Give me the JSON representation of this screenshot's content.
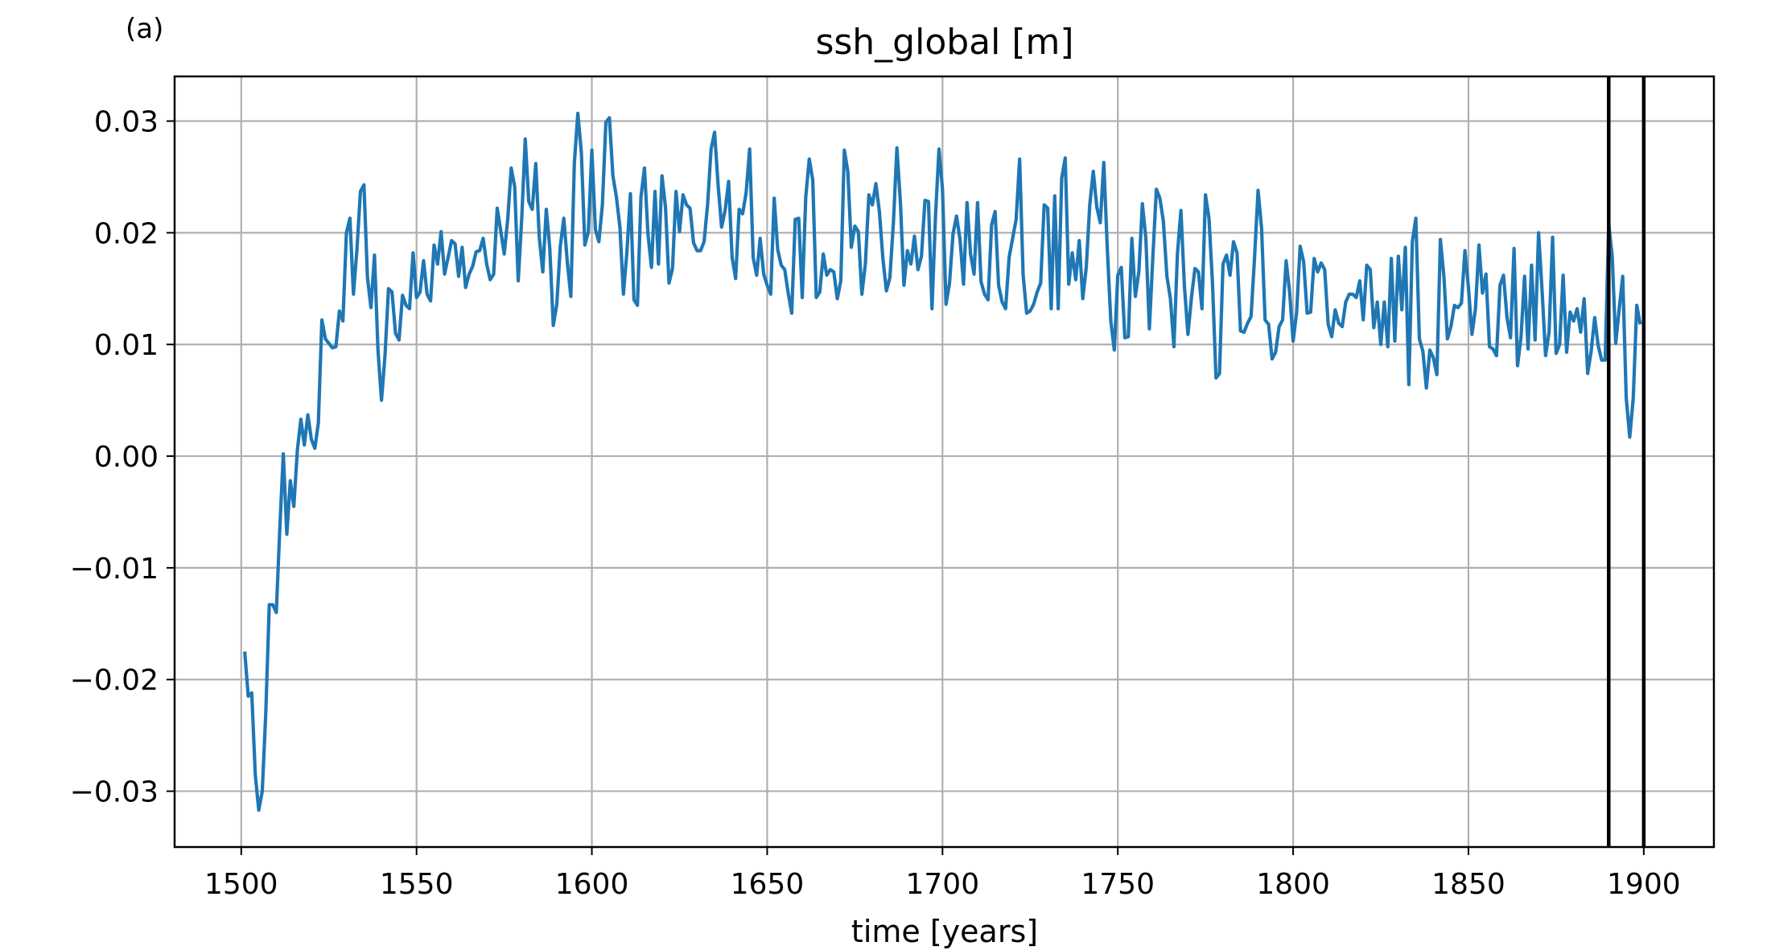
{
  "panel_label": "(a)",
  "chart_data": {
    "type": "line",
    "title": "ssh_global [m]",
    "xlabel": "time [years]",
    "ylabel": "",
    "xlim": [
      1481,
      1920
    ],
    "ylim": [
      -0.035,
      0.034
    ],
    "xticks": [
      1500,
      1550,
      1600,
      1650,
      1700,
      1750,
      1800,
      1850,
      1900
    ],
    "xtick_labels": [
      "1500",
      "1550",
      "1600",
      "1650",
      "1700",
      "1750",
      "1800",
      "1850",
      "1900"
    ],
    "yticks": [
      -0.03,
      -0.02,
      -0.01,
      0.0,
      0.01,
      0.02,
      0.03
    ],
    "ytick_labels": [
      "−0.03",
      "−0.02",
      "−0.01",
      "0.00",
      "0.01",
      "0.02",
      "0.03"
    ],
    "grid": true,
    "legend": false,
    "line_color": "#1f77b4",
    "vertical_lines": [
      1890,
      1900
    ],
    "vertical_line_color": "#000000",
    "x_start": 1501,
    "x_step": 1,
    "y": [
      -0.0175,
      -0.0215,
      -0.0212,
      -0.0285,
      -0.0317,
      -0.03,
      -0.023,
      -0.0133,
      -0.0133,
      -0.014,
      -0.0065,
      0.0002,
      -0.007,
      -0.0022,
      -0.0045,
      0.0005,
      0.0033,
      0.001,
      0.0037,
      0.0015,
      0.0007,
      0.003,
      0.0122,
      0.0105,
      0.0101,
      0.0097,
      0.0098,
      0.013,
      0.0121,
      0.02,
      0.0213,
      0.0145,
      0.0185,
      0.0237,
      0.0243,
      0.016,
      0.0133,
      0.018,
      0.0095,
      0.005,
      0.009,
      0.015,
      0.0147,
      0.011,
      0.0104,
      0.0144,
      0.0135,
      0.0132,
      0.0182,
      0.0142,
      0.0147,
      0.0175,
      0.0145,
      0.0139,
      0.0189,
      0.0172,
      0.0201,
      0.0163,
      0.0178,
      0.0193,
      0.019,
      0.0161,
      0.0187,
      0.0151,
      0.0163,
      0.017,
      0.0183,
      0.0184,
      0.0195,
      0.0172,
      0.0158,
      0.0163,
      0.0222,
      0.0202,
      0.0181,
      0.0212,
      0.0258,
      0.0241,
      0.0157,
      0.0213,
      0.0284,
      0.0228,
      0.0221,
      0.0262,
      0.0196,
      0.0165,
      0.0221,
      0.0186,
      0.0117,
      0.0136,
      0.0188,
      0.0213,
      0.0174,
      0.0143,
      0.0262,
      0.0307,
      0.0272,
      0.0189,
      0.0201,
      0.0274,
      0.0203,
      0.0192,
      0.0225,
      0.0299,
      0.0303,
      0.0251,
      0.0232,
      0.0205,
      0.0145,
      0.0183,
      0.0235,
      0.014,
      0.0135,
      0.0232,
      0.0258,
      0.0199,
      0.0169,
      0.0237,
      0.0172,
      0.0251,
      0.0223,
      0.0155,
      0.0168,
      0.0237,
      0.0201,
      0.0234,
      0.0225,
      0.0222,
      0.0191,
      0.0184,
      0.0184,
      0.0192,
      0.0225,
      0.0275,
      0.029,
      0.0243,
      0.0205,
      0.022,
      0.0246,
      0.0178,
      0.0159,
      0.0221,
      0.0217,
      0.0236,
      0.0275,
      0.0178,
      0.0162,
      0.0195,
      0.0163,
      0.0153,
      0.0145,
      0.0231,
      0.0185,
      0.0171,
      0.0167,
      0.0146,
      0.0128,
      0.0212,
      0.0213,
      0.0142,
      0.0232,
      0.0266,
      0.0247,
      0.0142,
      0.0147,
      0.0181,
      0.0162,
      0.0167,
      0.0165,
      0.0141,
      0.0157,
      0.0274,
      0.0255,
      0.0187,
      0.0206,
      0.0201,
      0.0145,
      0.0172,
      0.0234,
      0.0225,
      0.0244,
      0.0219,
      0.0177,
      0.0148,
      0.016,
      0.0209,
      0.0276,
      0.0227,
      0.0153,
      0.0184,
      0.0172,
      0.0197,
      0.0167,
      0.0179,
      0.0229,
      0.0228,
      0.0132,
      0.0215,
      0.0275,
      0.0239,
      0.0136,
      0.0155,
      0.0199,
      0.0215,
      0.0194,
      0.0154,
      0.0227,
      0.0181,
      0.0163,
      0.0227,
      0.0156,
      0.0145,
      0.014,
      0.0207,
      0.0219,
      0.0153,
      0.0138,
      0.0132,
      0.0178,
      0.0195,
      0.0212,
      0.0266,
      0.0162,
      0.0128,
      0.013,
      0.0136,
      0.0147,
      0.0155,
      0.0225,
      0.0222,
      0.0132,
      0.0233,
      0.0132,
      0.0249,
      0.0267,
      0.0154,
      0.0182,
      0.0158,
      0.0193,
      0.0141,
      0.0169,
      0.0225,
      0.0255,
      0.0223,
      0.0209,
      0.0263,
      0.0186,
      0.0121,
      0.0095,
      0.0162,
      0.0169,
      0.0106,
      0.0107,
      0.0195,
      0.0143,
      0.0165,
      0.0226,
      0.0195,
      0.0114,
      0.0179,
      0.0239,
      0.0231,
      0.021,
      0.0161,
      0.0141,
      0.0098,
      0.0181,
      0.022,
      0.0152,
      0.0109,
      0.0142,
      0.0168,
      0.0165,
      0.0132,
      0.0234,
      0.0213,
      0.0155,
      0.007,
      0.0074,
      0.0172,
      0.018,
      0.0162,
      0.0192,
      0.0182,
      0.0112,
      0.0111,
      0.0119,
      0.0125,
      0.0178,
      0.0238,
      0.0204,
      0.0122,
      0.0118,
      0.0087,
      0.0093,
      0.0116,
      0.0122,
      0.0175,
      0.0147,
      0.0103,
      0.0129,
      0.0188,
      0.0174,
      0.0128,
      0.0129,
      0.0177,
      0.0165,
      0.0173,
      0.0167,
      0.0118,
      0.0107,
      0.0131,
      0.0119,
      0.0116,
      0.0138,
      0.0145,
      0.0145,
      0.0142,
      0.0157,
      0.0122,
      0.0171,
      0.0167,
      0.0115,
      0.0138,
      0.01,
      0.0138,
      0.0098,
      0.0177,
      0.0103,
      0.0179,
      0.0131,
      0.0187,
      0.0064,
      0.0192,
      0.0213,
      0.0105,
      0.0094,
      0.0061,
      0.0095,
      0.0088,
      0.0073,
      0.0194,
      0.0161,
      0.0105,
      0.0116,
      0.0135,
      0.0133,
      0.0137,
      0.0184,
      0.0151,
      0.0109,
      0.0132,
      0.0189,
      0.0146,
      0.0163,
      0.0098,
      0.0096,
      0.009,
      0.0153,
      0.0162,
      0.0124,
      0.0106,
      0.0186,
      0.0081,
      0.0107,
      0.0161,
      0.0096,
      0.0171,
      0.0104,
      0.02,
      0.0148,
      0.009,
      0.0111,
      0.0196,
      0.0092,
      0.01,
      0.0162,
      0.0093,
      0.0129,
      0.0121,
      0.0132,
      0.0111,
      0.0141,
      0.0074,
      0.0094,
      0.0124,
      0.0099,
      0.0086,
      0.0086,
      0.0208,
      0.0179,
      0.0101,
      0.0132,
      0.0161,
      0.0052,
      0.0017,
      0.0052,
      0.0135,
      0.0118
    ]
  }
}
